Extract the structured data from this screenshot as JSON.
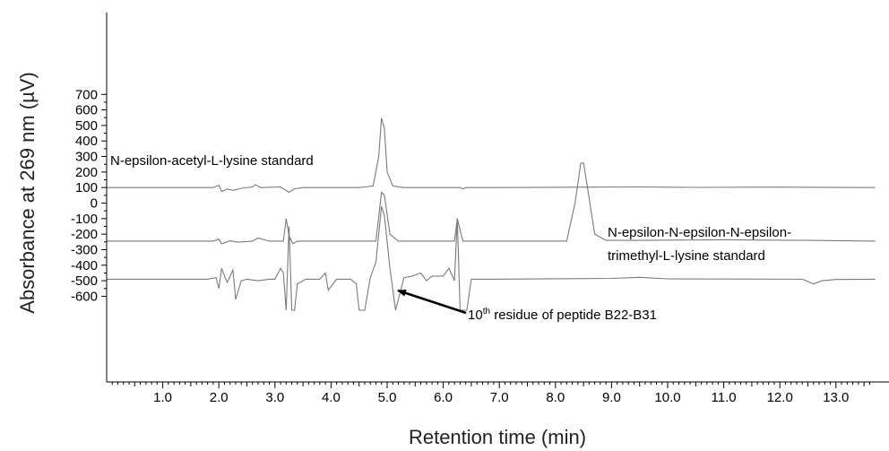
{
  "chart_data": {
    "type": "line",
    "xlabel": "Retention time (min)",
    "ylabel": "Absorbance at 269 nm (µV)",
    "xlim": [
      0,
      13.7
    ],
    "ylim": [
      -690,
      710
    ],
    "x_ticks": [
      1.0,
      2.0,
      3.0,
      4.0,
      5.0,
      6.0,
      7.0,
      8.0,
      9.0,
      10.0,
      11.0,
      12.0,
      13.0
    ],
    "x_tick_labels": [
      "1.0",
      "2.0",
      "3.0",
      "4.0",
      "5.0",
      "6.0",
      "7.0",
      "8.0",
      "9.0",
      "10.0",
      "11.0",
      "12.0",
      "13.0"
    ],
    "y_ticks": [
      700,
      600,
      500,
      400,
      300,
      200,
      100,
      0,
      -100,
      -200,
      -300,
      -400,
      -500,
      -600
    ],
    "y_tick_labels": [
      "700",
      "600",
      "500",
      "400",
      "300",
      "200",
      "100",
      "0",
      "-100",
      "-200",
      "-300",
      "-400",
      "-500",
      "-600"
    ],
    "grid": false,
    "series": [
      {
        "baseline": 100,
        "x": [
          0,
          1.9,
          2.0,
          2.05,
          2.15,
          2.25,
          2.4,
          2.6,
          2.65,
          2.75,
          3.1,
          3.25,
          3.35,
          3.5,
          4.5,
          4.75,
          4.85,
          4.9,
          4.95,
          5.0,
          5.1,
          5.3,
          6.3,
          6.35,
          6.4,
          7.0,
          9.5,
          10.5,
          12.0,
          13.7
        ],
        "y": [
          100,
          100,
          115,
          75,
          90,
          82,
          95,
          104,
          118,
          100,
          104,
          70,
          92,
          100,
          100,
          110,
          300,
          548,
          480,
          200,
          110,
          100,
          100,
          92,
          100,
          100,
          104,
          101,
          103,
          100
        ]
      },
      {
        "baseline": -245,
        "x": [
          0,
          1.9,
          2.0,
          2.05,
          2.2,
          2.35,
          2.6,
          2.7,
          2.9,
          3.15,
          3.2,
          3.25,
          3.32,
          3.4,
          3.55,
          4.8,
          4.9,
          4.95,
          5.05,
          5.2,
          6.0,
          6.2,
          6.25,
          6.35,
          6.45,
          8.2,
          8.35,
          8.45,
          8.5,
          8.55,
          8.7,
          8.9,
          9.5,
          11.0,
          12.5,
          13.7
        ],
        "y": [
          -245,
          -245,
          -232,
          -262,
          -243,
          -252,
          -245,
          -225,
          -245,
          -245,
          -100,
          -210,
          -262,
          -245,
          -245,
          -245,
          70,
          50,
          -200,
          -245,
          -245,
          -245,
          -100,
          -245,
          -245,
          -245,
          0,
          255,
          260,
          150,
          -200,
          -240,
          -240,
          -236,
          -240,
          -245
        ]
      },
      {
        "baseline": -490,
        "x": [
          0,
          1.8,
          1.95,
          2.0,
          2.05,
          2.1,
          2.15,
          2.25,
          2.3,
          2.4,
          2.5,
          2.7,
          2.9,
          3.0,
          3.1,
          3.15,
          3.2,
          3.25,
          3.3,
          3.35,
          3.4,
          3.55,
          3.8,
          3.9,
          3.95,
          4.1,
          4.35,
          4.45,
          4.5,
          4.6,
          4.7,
          4.8,
          4.9,
          4.95,
          5.05,
          5.15,
          5.3,
          5.45,
          5.6,
          5.7,
          5.8,
          6.0,
          6.1,
          6.2,
          6.25,
          6.3,
          6.35,
          6.42,
          6.5,
          6.6,
          6.8,
          9.0,
          9.5,
          10.0,
          12.4,
          12.6,
          12.75,
          13.0,
          13.7
        ],
        "y": [
          -490,
          -490,
          -480,
          -550,
          -420,
          -470,
          -510,
          -430,
          -620,
          -500,
          -490,
          -500,
          -490,
          -490,
          -420,
          -450,
          -690,
          -150,
          -690,
          -690,
          -520,
          -490,
          -490,
          -450,
          -560,
          -490,
          -490,
          -520,
          -690,
          -690,
          -480,
          -380,
          -20,
          -80,
          -420,
          -690,
          -480,
          -470,
          -450,
          -500,
          -470,
          -470,
          -420,
          -500,
          -100,
          -690,
          -690,
          -690,
          -490,
          -490,
          -490,
          -485,
          -478,
          -488,
          -490,
          -520,
          -500,
          -492,
          -490
        ]
      }
    ],
    "annotations": [
      {
        "text": "N-epsilon-acetyl-L-lysine standard"
      },
      {
        "text": "N-epsilon-N-epsilon-N-epsilon-"
      },
      {
        "text": "trimethyl-L-lysine standard"
      },
      {
        "text": "10",
        "sup": "th",
        "rest": " residue of peptide B22-B31"
      }
    ]
  }
}
